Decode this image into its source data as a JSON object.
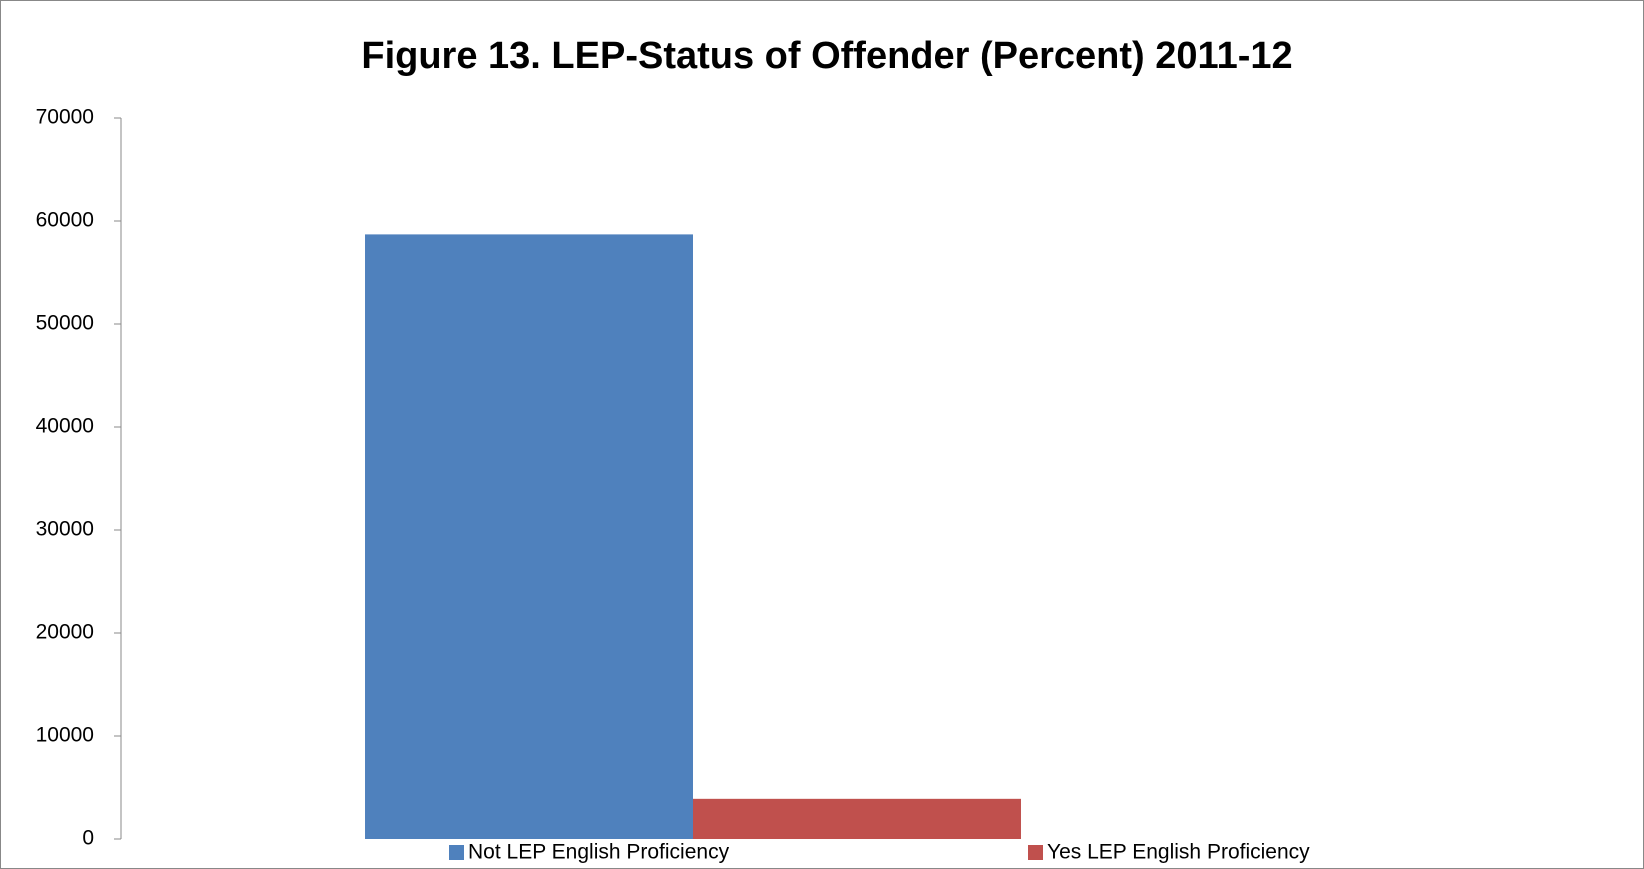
{
  "chart_data": {
    "type": "bar",
    "title": "Figure 13.  LEP-Status of Offender (Percent) 2011-12",
    "categories": [
      null
    ],
    "series": [
      {
        "name": "Not LEP English Proficiency",
        "color": "#4f81bd",
        "values": [
          58700
        ]
      },
      {
        "name": "Yes LEP English Proficiency",
        "color": "#c0504d",
        "values": [
          3900
        ]
      }
    ],
    "ylim": [
      0,
      70000
    ],
    "yticks": [
      0,
      10000,
      20000,
      30000,
      40000,
      50000,
      60000,
      70000
    ],
    "grid": false,
    "legend": "bottom"
  }
}
